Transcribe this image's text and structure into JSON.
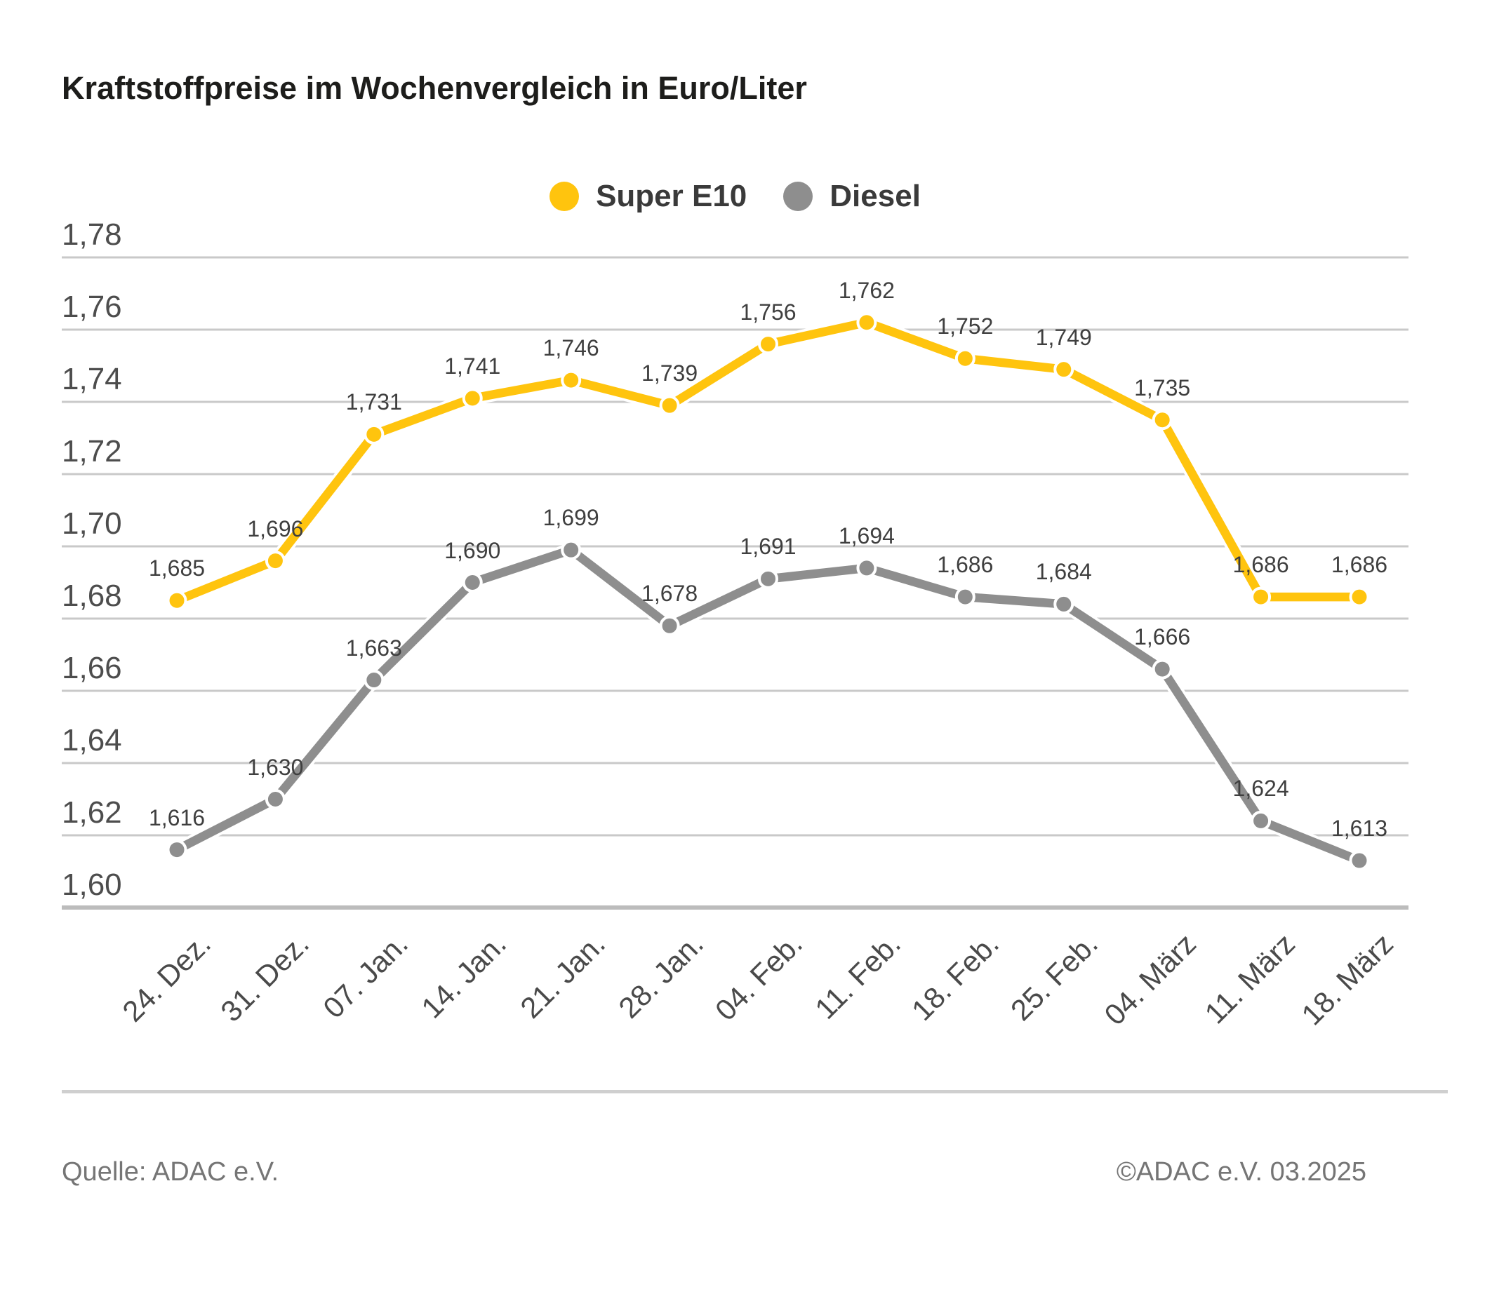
{
  "title": "Kraftstoffpreise im Wochenvergleich in Euro/Liter",
  "footer": {
    "source": "Quelle: ADAC e.V.",
    "copyright": "©ADAC e.V. 03.2025"
  },
  "colors": {
    "super_e10": "#ffc40e",
    "diesel": "#8e8e8e",
    "gridline": "#c9c9c9",
    "axis_line": "#bcbcbc",
    "value_label": "#3f3f3f",
    "tick_label": "#4d4d4d"
  },
  "chart_data": {
    "type": "line",
    "title": "Kraftstoffpreise im Wochenvergleich in Euro/Liter",
    "categories": [
      "24. Dez.",
      "31. Dez.",
      "07. Jan.",
      "14. Jan.",
      "21. Jan.",
      "28. Jan.",
      "04. Feb.",
      "11. Feb.",
      "18. Feb.",
      "25. Feb.",
      "04. März",
      "11. März",
      "18. März"
    ],
    "series": [
      {
        "name": "Super E10",
        "color": "#ffc40e",
        "values": [
          1.685,
          1.696,
          1.731,
          1.741,
          1.746,
          1.739,
          1.756,
          1.762,
          1.752,
          1.749,
          1.735,
          1.686,
          1.686
        ]
      },
      {
        "name": "Diesel",
        "color": "#8e8e8e",
        "values": [
          1.616,
          1.63,
          1.663,
          1.69,
          1.699,
          1.678,
          1.691,
          1.694,
          1.686,
          1.684,
          1.666,
          1.624,
          1.613
        ]
      }
    ],
    "xlabel": "",
    "ylabel": "Euro/Liter",
    "ylim": [
      1.6,
      1.78
    ],
    "ytick_step": 0.02,
    "grid": true,
    "legend_position": "top-center",
    "value_labels": true,
    "value_label_decimals": 3,
    "tick_decimals": 2,
    "decimal_separator": ","
  }
}
